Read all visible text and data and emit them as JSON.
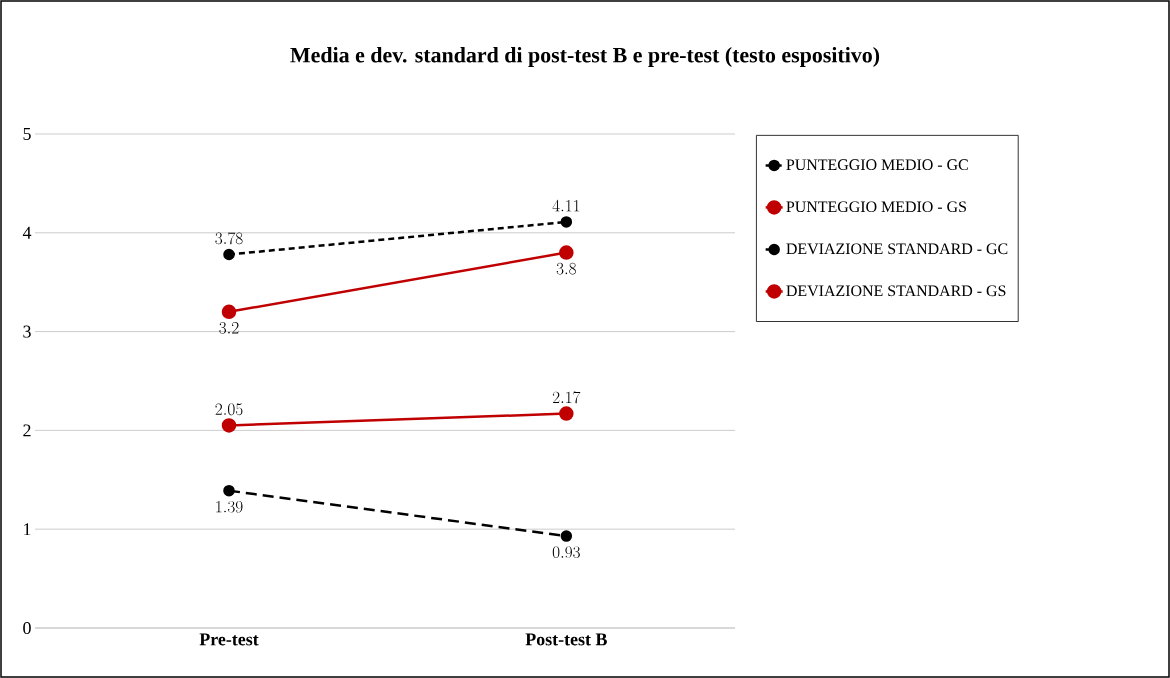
{
  "chart_data": {
    "type": "line",
    "title": "Media e dev. standard di post-test B e pre-test (testo espositivo)",
    "categories": [
      "Pre-test",
      "Post-test B"
    ],
    "series": [
      {
        "name": "PUNTEGGIO MEDIO - GC",
        "color": "#000000",
        "values": [
          3.78,
          4.11
        ],
        "line_style": "dashed"
      },
      {
        "name": "PUNTEGGIO MEDIO - GS",
        "color": "#c00000",
        "values": [
          3.2,
          3.8
        ],
        "line_style": "solid"
      },
      {
        "name": "DEVIAZIONE STANDARD - GC",
        "color": "#000000",
        "values": [
          1.39,
          0.93
        ],
        "line_style": "dashed"
      },
      {
        "name": "DEVIAZIONE STANDARD - GS",
        "color": "#c00000",
        "values": [
          2.05,
          2.17
        ],
        "line_style": "solid"
      }
    ],
    "ylim": [
      0,
      5
    ],
    "yticks": [
      0,
      1,
      2,
      3,
      4,
      5
    ],
    "grid": "y",
    "legend": "right",
    "marker": "circle",
    "data_labels": true
  }
}
